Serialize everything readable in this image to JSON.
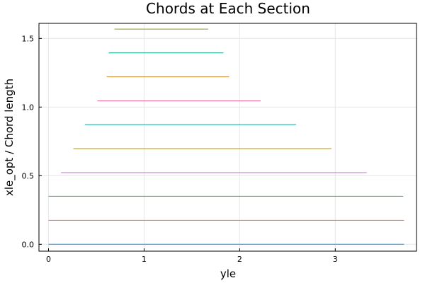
{
  "chart_data": {
    "type": "line",
    "title": "Chords at Each Section",
    "xlabel": "yle",
    "ylabel": "xle_opt / Chord length",
    "xlim": [
      -0.1,
      3.85
    ],
    "ylim": [
      -0.05,
      1.61
    ],
    "xticks": [
      0,
      1,
      2,
      3
    ],
    "yticks": [
      0.0,
      0.5,
      1.0,
      1.5
    ],
    "xtick_labels": [
      "0",
      "1",
      "2",
      "3"
    ],
    "ytick_labels": [
      "0.0",
      "0.5",
      "1.0",
      "1.5"
    ],
    "grid": true,
    "legend": "none",
    "series": [
      {
        "color": "#009AFA",
        "x": [
          0.0,
          3.72
        ],
        "y": [
          0.0,
          0.0
        ]
      },
      {
        "color": "#E36F47",
        "x": [
          0.0,
          3.72
        ],
        "y": [
          0.175,
          0.175
        ]
      },
      {
        "color": "#3EA44E",
        "x": [
          0.0,
          3.71
        ],
        "y": [
          0.35,
          0.35
        ]
      },
      {
        "color": "#C371D2",
        "x": [
          0.13,
          3.33
        ],
        "y": [
          0.522,
          0.522
        ]
      },
      {
        "color": "#AC8D18",
        "x": [
          0.26,
          2.96
        ],
        "y": [
          0.697,
          0.697
        ]
      },
      {
        "color": "#00A9AD",
        "x": [
          0.38,
          2.59
        ],
        "y": [
          0.872,
          0.872
        ]
      },
      {
        "color": "#ED5D92",
        "x": [
          0.51,
          2.22
        ],
        "y": [
          1.045,
          1.045
        ]
      },
      {
        "color": "#C68225",
        "x": [
          0.61,
          1.89
        ],
        "y": [
          1.22,
          1.22
        ]
      },
      {
        "color": "#00A98D",
        "x": [
          0.63,
          1.83
        ],
        "y": [
          1.395,
          1.395
        ]
      },
      {
        "color": "#8E971D",
        "x": [
          0.69,
          1.67
        ],
        "y": [
          1.568,
          1.568
        ]
      }
    ]
  }
}
